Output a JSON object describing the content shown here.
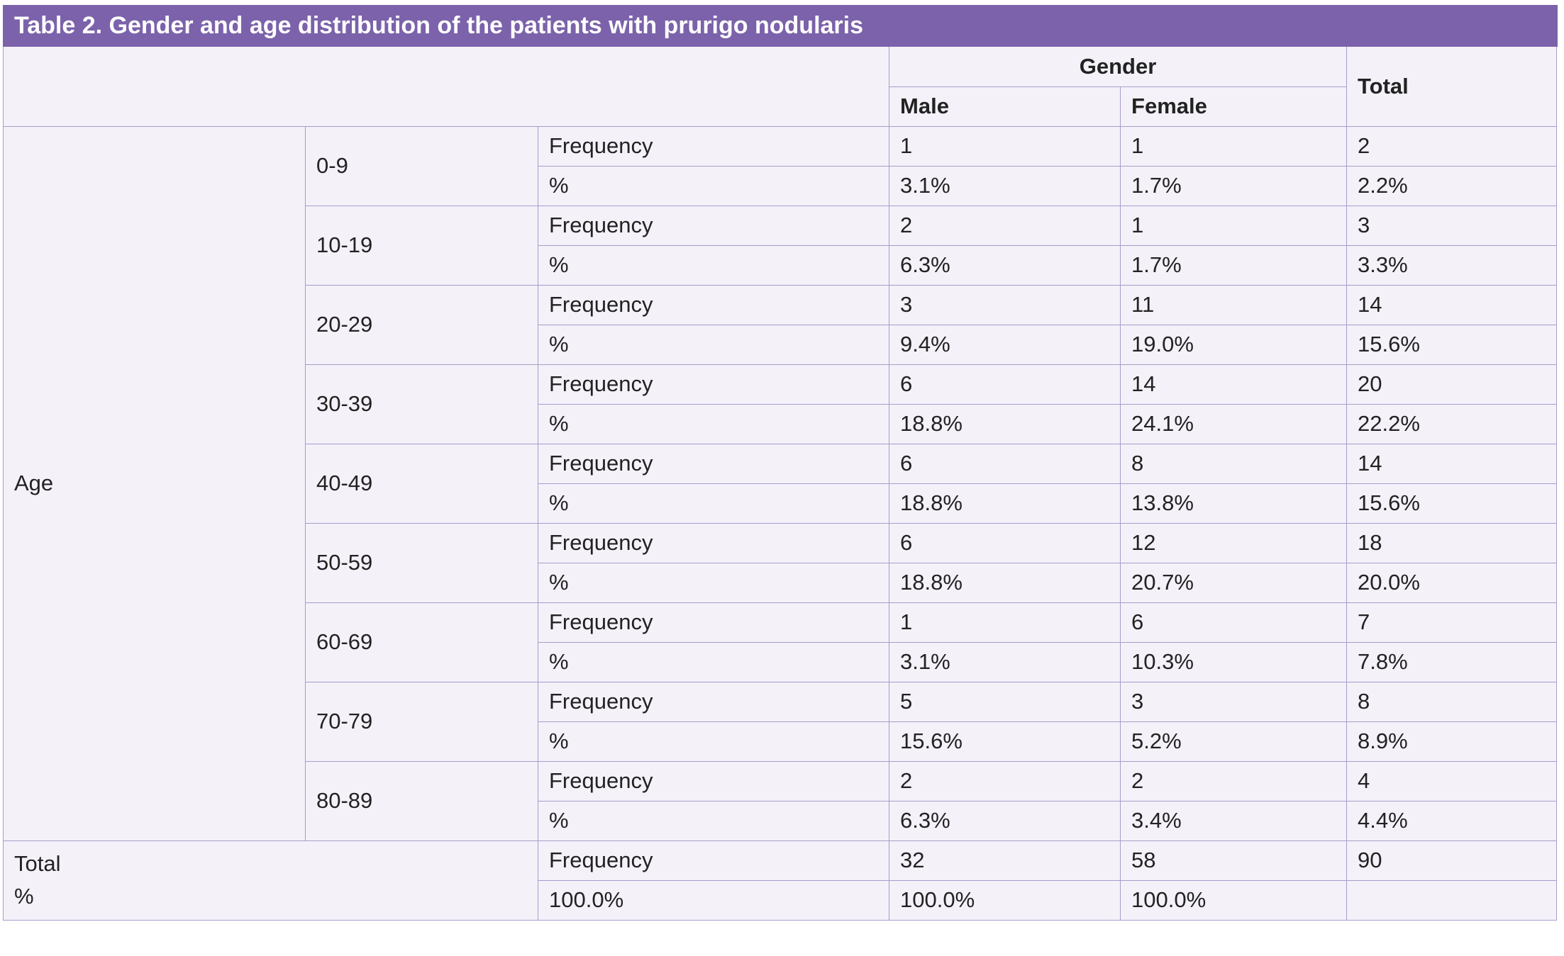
{
  "title": "Table 2. Gender and age distribution of the patients with prurigo nodularis",
  "header": {
    "gender": "Gender",
    "male": "Male",
    "female": "Female",
    "total": "Total"
  },
  "age_label": "Age",
  "groups": [
    {
      "range": "0-9",
      "frequency": [
        "Frequency",
        "1",
        "1",
        "2"
      ],
      "percent": [
        "%",
        "3.1%",
        "1.7%",
        "2.2%"
      ]
    },
    {
      "range": "10-19",
      "frequency": [
        "Frequency",
        "2",
        "1",
        "3"
      ],
      "percent": [
        "%",
        "6.3%",
        "1.7%",
        "3.3%"
      ]
    },
    {
      "range": "20-29",
      "frequency": [
        "Frequency",
        "3",
        "11",
        "14"
      ],
      "percent": [
        "%",
        "9.4%",
        "19.0%",
        "15.6%"
      ]
    },
    {
      "range": "30-39",
      "frequency": [
        "Frequency",
        "6",
        "14",
        "20"
      ],
      "percent": [
        "%",
        "18.8%",
        "24.1%",
        "22.2%"
      ]
    },
    {
      "range": "40-49",
      "frequency": [
        "Frequency",
        "6",
        "8",
        "14"
      ],
      "percent": [
        "%",
        "18.8%",
        "13.8%",
        "15.6%"
      ]
    },
    {
      "range": "50-59",
      "frequency": [
        "Frequency",
        "6",
        "12",
        "18"
      ],
      "percent": [
        "%",
        "18.8%",
        "20.7%",
        "20.0%"
      ]
    },
    {
      "range": "60-69",
      "frequency": [
        "Frequency",
        "1",
        "6",
        "7"
      ],
      "percent": [
        "%",
        "3.1%",
        "10.3%",
        "7.8%"
      ]
    },
    {
      "range": "70-79",
      "frequency": [
        "Frequency",
        "5",
        "3",
        "8"
      ],
      "percent": [
        "%",
        "15.6%",
        "5.2%",
        "8.9%"
      ]
    },
    {
      "range": "80-89",
      "frequency": [
        "Frequency",
        "2",
        "2",
        "4"
      ],
      "percent": [
        "%",
        "6.3%",
        "3.4%",
        "4.4%"
      ]
    }
  ],
  "total_row": {
    "label": "Total",
    "label2": "%",
    "frequency": [
      "Frequency",
      "32",
      "58",
      "90"
    ],
    "percent": [
      "100.0%",
      "100.0%",
      "100.0%"
    ]
  }
}
